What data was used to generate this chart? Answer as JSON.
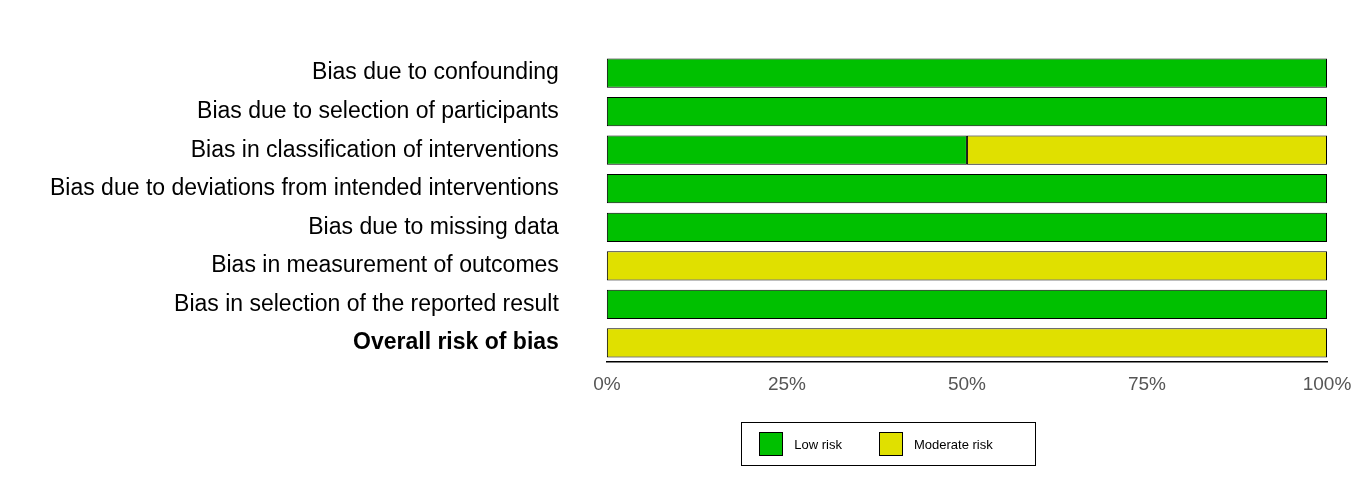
{
  "chart_data": {
    "type": "bar",
    "orientation": "horizontal",
    "stacked": true,
    "categories": [
      "Bias due to confounding",
      "Bias due to selection of participants",
      "Bias in classification of interventions",
      "Bias due to deviations from intended interventions",
      "Bias due to missing data",
      "Bias in measurement of outcomes",
      "Bias in selection of the reported result",
      "Overall risk of bias"
    ],
    "series": [
      {
        "name": "Low risk",
        "color": "#00c000",
        "values": [
          100,
          100,
          50,
          100,
          100,
          0,
          100,
          0
        ]
      },
      {
        "name": "Moderate risk",
        "color": "#e0e000",
        "values": [
          0,
          0,
          50,
          0,
          0,
          100,
          0,
          100
        ]
      }
    ],
    "xlim": [
      0,
      100
    ],
    "xticks": [
      {
        "value": 0,
        "label": "0%"
      },
      {
        "value": 25,
        "label": "25%"
      },
      {
        "value": 50,
        "label": "50%"
      },
      {
        "value": 75,
        "label": "75%"
      },
      {
        "value": 100,
        "label": "100%"
      }
    ],
    "grid": false,
    "legend": "bottom"
  }
}
